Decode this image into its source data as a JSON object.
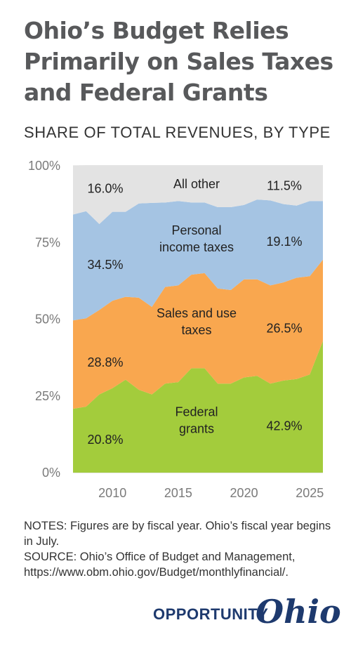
{
  "title": "Ohio’s Budget Relies Primarily on Sales Taxes and Federal Grants",
  "subtitle": "SHARE OF TOTAL REVENUES, BY TYPE",
  "notes": {
    "line1": "NOTES: Figures are by fiscal year. Ohio’s fiscal year begins in July.",
    "line2": "SOURCE: Ohio’s Office of Budget and Management, https://www.obm.ohio.gov/Budget/monthlyfinancial/."
  },
  "logo": {
    "text1": "OPPORTUNITY",
    "text2": "Ohio",
    "color": "#1e3a6e"
  },
  "chart_data": {
    "type": "area",
    "stacked": true,
    "x": [
      2007,
      2008,
      2009,
      2010,
      2011,
      2012,
      2013,
      2014,
      2015,
      2016,
      2017,
      2018,
      2019,
      2020,
      2021,
      2022,
      2023,
      2024,
      2025,
      2026
    ],
    "xticks": [
      2010,
      2015,
      2020,
      2025
    ],
    "yticks": [
      "0%",
      "25%",
      "50%",
      "75%",
      "100%"
    ],
    "ylim": [
      0,
      100
    ],
    "xlim": [
      2007,
      2026
    ],
    "grid": true,
    "series": [
      {
        "name": "Federal grants",
        "label_lines": [
          "Federal",
          "grants"
        ],
        "color": "#a3cc3c",
        "values": [
          20.8,
          21.5,
          25.5,
          27.5,
          30.3,
          27.0,
          25.5,
          29.0,
          29.5,
          34.0,
          34.0,
          29.0,
          29.0,
          31.0,
          31.5,
          29.0,
          30.0,
          30.5,
          32.0,
          42.9
        ],
        "start_label": "20.8%",
        "end_label": "42.9%"
      },
      {
        "name": "Sales and use taxes",
        "label_lines": [
          "Sales and use",
          "taxes"
        ],
        "color": "#f9a74f",
        "values": [
          28.8,
          28.8,
          27.5,
          28.5,
          27.0,
          30.0,
          28.5,
          31.5,
          31.5,
          30.5,
          31.0,
          31.0,
          30.5,
          32.0,
          31.5,
          32.0,
          32.0,
          33.0,
          32.0,
          26.5
        ],
        "start_label": "28.8%",
        "end_label": "26.5%"
      },
      {
        "name": "Personal income taxes",
        "label_lines": [
          "Personal",
          "income taxes"
        ],
        "color": "#a5c4e3",
        "values": [
          34.5,
          34.9,
          28.0,
          29.0,
          27.7,
          30.7,
          33.9,
          27.5,
          27.5,
          23.5,
          23.0,
          26.5,
          27.0,
          24.2,
          26.0,
          27.7,
          25.5,
          23.5,
          24.5,
          19.1
        ],
        "start_label": "34.5%",
        "end_label": "19.1%"
      },
      {
        "name": "All other",
        "label_lines": [
          "All other"
        ],
        "color": "#e3e3e3",
        "values": [
          16.0,
          14.8,
          19.0,
          15.0,
          15.0,
          12.3,
          12.1,
          12.0,
          11.5,
          12.0,
          12.0,
          13.5,
          13.5,
          12.8,
          11.0,
          11.3,
          12.5,
          13.0,
          11.5,
          11.5
        ],
        "start_label": "16.0%",
        "end_label": "11.5%"
      }
    ]
  }
}
